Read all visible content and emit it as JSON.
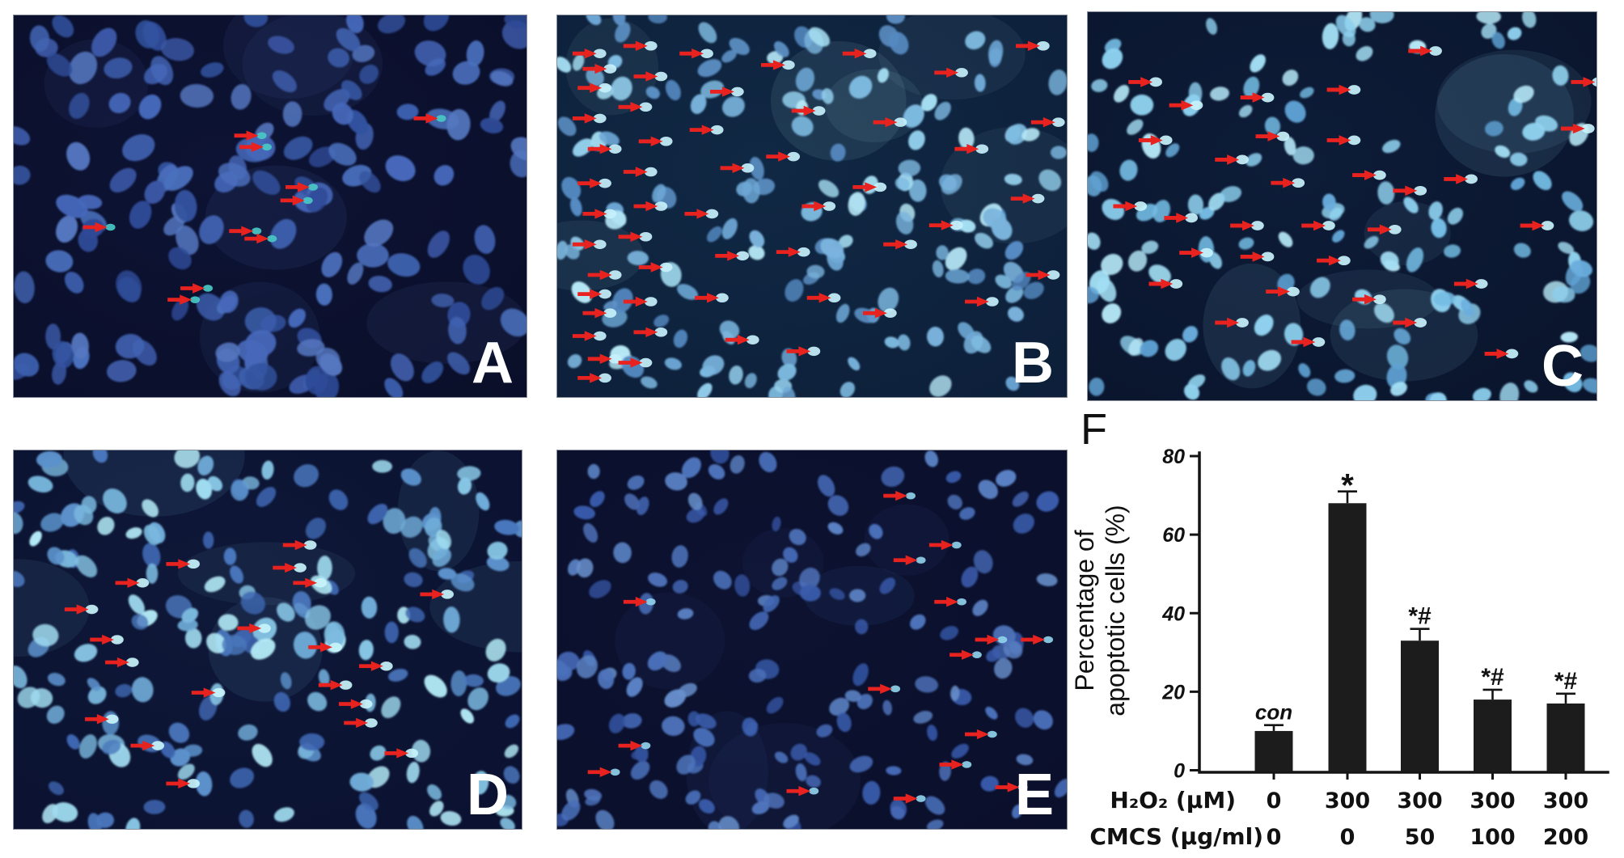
{
  "figure_background": "#ffffff",
  "arrow_color": "#e8231f",
  "chart_panel": {
    "label": "F"
  },
  "panels": [
    {
      "id": "A",
      "label": "A",
      "style": {
        "seed": 11,
        "count": 150,
        "rmin": 13,
        "rmax": 21,
        "bg1": "#090d26",
        "bg2": "#0d1334",
        "palette": [
          "#33539f",
          "#3c5fae",
          "#4163b2",
          "#4a6fbc",
          "#3b57a4",
          "#4668ba",
          "#2e4a96",
          "#5577c0"
        ],
        "bright": "#49c8c4",
        "tip_r": 6
      },
      "arrows": [
        [
          0.78,
          0.27
        ],
        [
          0.43,
          0.315
        ],
        [
          0.44,
          0.345
        ],
        [
          0.53,
          0.45
        ],
        [
          0.52,
          0.485
        ],
        [
          0.135,
          0.555
        ],
        [
          0.42,
          0.565
        ],
        [
          0.45,
          0.585
        ],
        [
          0.325,
          0.715
        ],
        [
          0.3,
          0.745
        ]
      ]
    },
    {
      "id": "B",
      "label": "B",
      "style": {
        "seed": 22,
        "count": 155,
        "rmin": 9,
        "rmax": 16,
        "bg1": "#0c1c36",
        "bg2": "#102844",
        "palette": [
          "#5e93c8",
          "#6ea8d6",
          "#7fbce2",
          "#93cfec",
          "#a6e0f4",
          "#558ac2",
          "#7ab4dd",
          "#b7e9f7"
        ],
        "bright": "#c6f0fb",
        "tip_r": 8
      },
      "arrows": [
        [
          0.03,
          0.1
        ],
        [
          0.05,
          0.14
        ],
        [
          0.04,
          0.19
        ],
        [
          0.03,
          0.27
        ],
        [
          0.06,
          0.35
        ],
        [
          0.04,
          0.44
        ],
        [
          0.05,
          0.52
        ],
        [
          0.03,
          0.6
        ],
        [
          0.06,
          0.68
        ],
        [
          0.04,
          0.73
        ],
        [
          0.05,
          0.78
        ],
        [
          0.03,
          0.84
        ],
        [
          0.06,
          0.9
        ],
        [
          0.04,
          0.95
        ],
        [
          0.13,
          0.08
        ],
        [
          0.15,
          0.16
        ],
        [
          0.12,
          0.24
        ],
        [
          0.16,
          0.33
        ],
        [
          0.13,
          0.41
        ],
        [
          0.15,
          0.5
        ],
        [
          0.12,
          0.58
        ],
        [
          0.16,
          0.66
        ],
        [
          0.13,
          0.75
        ],
        [
          0.15,
          0.83
        ],
        [
          0.12,
          0.91
        ],
        [
          0.24,
          0.1
        ],
        [
          0.3,
          0.2
        ],
        [
          0.26,
          0.3
        ],
        [
          0.32,
          0.4
        ],
        [
          0.25,
          0.52
        ],
        [
          0.31,
          0.63
        ],
        [
          0.27,
          0.74
        ],
        [
          0.33,
          0.85
        ],
        [
          0.4,
          0.13
        ],
        [
          0.46,
          0.25
        ],
        [
          0.41,
          0.37
        ],
        [
          0.48,
          0.5
        ],
        [
          0.43,
          0.62
        ],
        [
          0.49,
          0.74
        ],
        [
          0.45,
          0.88
        ],
        [
          0.56,
          0.1
        ],
        [
          0.62,
          0.28
        ],
        [
          0.58,
          0.45
        ],
        [
          0.64,
          0.6
        ],
        [
          0.6,
          0.78
        ],
        [
          0.74,
          0.15
        ],
        [
          0.78,
          0.35
        ],
        [
          0.73,
          0.55
        ],
        [
          0.8,
          0.75
        ],
        [
          0.9,
          0.08
        ],
        [
          0.93,
          0.28
        ],
        [
          0.89,
          0.48
        ],
        [
          0.92,
          0.68
        ]
      ]
    },
    {
      "id": "C",
      "label": "C",
      "style": {
        "seed": 33,
        "count": 135,
        "rmin": 9,
        "rmax": 16,
        "bg1": "#091228",
        "bg2": "#0d1c38",
        "palette": [
          "#5fa2d4",
          "#74bce4",
          "#8ccfee",
          "#a2def4",
          "#b6e9f8",
          "#6aaede",
          "#90d2ef"
        ],
        "bright": "#c8f2fb",
        "tip_r": 8
      },
      "arrows": [
        [
          0.08,
          0.18
        ],
        [
          0.16,
          0.24
        ],
        [
          0.3,
          0.22
        ],
        [
          0.47,
          0.2
        ],
        [
          0.63,
          0.1
        ],
        [
          0.1,
          0.33
        ],
        [
          0.33,
          0.32
        ],
        [
          0.47,
          0.33
        ],
        [
          0.25,
          0.38
        ],
        [
          0.52,
          0.42
        ],
        [
          0.36,
          0.44
        ],
        [
          0.6,
          0.46
        ],
        [
          0.7,
          0.43
        ],
        [
          0.05,
          0.5
        ],
        [
          0.15,
          0.53
        ],
        [
          0.28,
          0.55
        ],
        [
          0.42,
          0.55
        ],
        [
          0.55,
          0.56
        ],
        [
          0.18,
          0.62
        ],
        [
          0.3,
          0.63
        ],
        [
          0.45,
          0.64
        ],
        [
          0.12,
          0.7
        ],
        [
          0.35,
          0.72
        ],
        [
          0.52,
          0.74
        ],
        [
          0.25,
          0.8
        ],
        [
          0.4,
          0.85
        ],
        [
          0.6,
          0.8
        ],
        [
          0.72,
          0.7
        ],
        [
          0.85,
          0.55
        ],
        [
          0.93,
          0.3
        ],
        [
          0.95,
          0.18
        ],
        [
          0.78,
          0.88
        ]
      ]
    },
    {
      "id": "D",
      "label": "D",
      "style": {
        "seed": 44,
        "count": 175,
        "rmin": 10,
        "rmax": 17,
        "bg1": "#0a0f2e",
        "bg2": "#0e1838",
        "palette": [
          "#4a77bd",
          "#5c92cc",
          "#70acd9",
          "#88c6e6",
          "#9fdbf0",
          "#b4ecf8",
          "#3f66b2",
          "#7ab8de"
        ],
        "bright": "#c8f4fb",
        "tip_r": 8
      },
      "arrows": [
        [
          0.53,
          0.25
        ],
        [
          0.3,
          0.3
        ],
        [
          0.51,
          0.31
        ],
        [
          0.8,
          0.38
        ],
        [
          0.1,
          0.42
        ],
        [
          0.15,
          0.5
        ],
        [
          0.18,
          0.56
        ],
        [
          0.35,
          0.64
        ],
        [
          0.14,
          0.71
        ],
        [
          0.23,
          0.78
        ],
        [
          0.58,
          0.52
        ],
        [
          0.6,
          0.62
        ],
        [
          0.64,
          0.67
        ],
        [
          0.65,
          0.72
        ],
        [
          0.73,
          0.8
        ],
        [
          0.3,
          0.88
        ],
        [
          0.55,
          0.35
        ],
        [
          0.44,
          0.47
        ],
        [
          0.68,
          0.57
        ],
        [
          0.2,
          0.35
        ]
      ]
    },
    {
      "id": "E",
      "label": "E",
      "style": {
        "seed": 55,
        "count": 150,
        "rmin": 9,
        "rmax": 15,
        "bg1": "#0a0e2a",
        "bg2": "#0c1230",
        "palette": [
          "#3a5cac",
          "#4467b4",
          "#4f74bc",
          "#5b82c4",
          "#6890cc",
          "#32519e",
          "#4a70ba"
        ],
        "bright": "#8fd0ea",
        "tip_r": 6
      },
      "arrows": [
        [
          0.64,
          0.12
        ],
        [
          0.73,
          0.25
        ],
        [
          0.66,
          0.29
        ],
        [
          0.13,
          0.4
        ],
        [
          0.74,
          0.4
        ],
        [
          0.82,
          0.5
        ],
        [
          0.91,
          0.5
        ],
        [
          0.77,
          0.54
        ],
        [
          0.61,
          0.63
        ],
        [
          0.8,
          0.75
        ],
        [
          0.12,
          0.78
        ],
        [
          0.75,
          0.83
        ],
        [
          0.06,
          0.85
        ],
        [
          0.45,
          0.9
        ],
        [
          0.66,
          0.92
        ],
        [
          0.86,
          0.89
        ]
      ]
    }
  ],
  "chart_data": {
    "type": "bar",
    "title": "",
    "ylabel_line1": "Percentage of",
    "ylabel_line2": "apoptotic cells (%)",
    "ylim": [
      0,
      80
    ],
    "yticks": [
      0,
      20,
      40,
      60,
      80
    ],
    "categories": [
      "0/0",
      "300/0",
      "300/50",
      "300/100",
      "300/200"
    ],
    "values": [
      10,
      68,
      33,
      18,
      17
    ],
    "errors": [
      1.5,
      3,
      3,
      2.5,
      2.5
    ],
    "annotations": [
      "con",
      "*",
      "*#",
      "*#",
      "*#"
    ],
    "bar_color": "#1c1c1c",
    "axis_color": "#141414",
    "grid": false,
    "legend": "none",
    "x_rows": [
      {
        "label": "H₂O₂ (μM)",
        "values": [
          "0",
          "300",
          "300",
          "300",
          "300"
        ]
      },
      {
        "label": "CMCS (μg/ml)",
        "values": [
          "0",
          "0",
          "50",
          "100",
          "200"
        ]
      }
    ]
  }
}
